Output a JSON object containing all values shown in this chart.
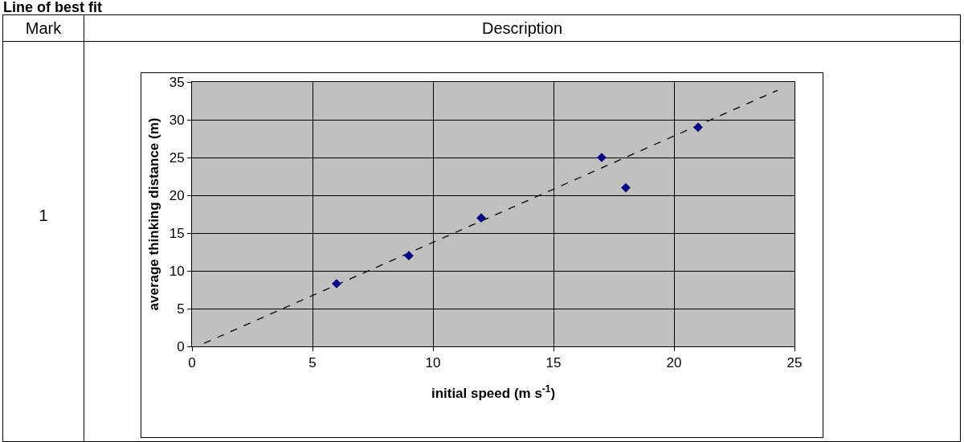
{
  "chart_data": {
    "type": "scatter",
    "title": "Line of best fit",
    "annotations": [
      "Mark",
      "Description",
      "1"
    ],
    "xlabel": "initial speed (m s$^{-1}$)",
    "ylabel": "average thinking distance (m)",
    "xlim": [
      0,
      25
    ],
    "xticks": [
      0,
      5,
      10,
      15,
      20,
      25
    ],
    "ylim": [
      0,
      35
    ],
    "yticks": [
      0,
      5,
      10,
      15,
      20,
      25,
      30,
      35
    ],
    "grid": true,
    "marker": "diamond",
    "series": [
      {
        "color": "#000080",
        "x": [
          6,
          9,
          12,
          17,
          18,
          21
        ],
        "values": [
          8.3,
          12,
          17,
          25,
          21,
          29
        ]
      },
      {
        "type": "line",
        "color": "#000000",
        "line_style": "dashed",
        "marker": "none",
        "x": [
          0.5,
          24.3
        ],
        "values": [
          0.4,
          33.9
        ]
      }
    ]
  }
}
